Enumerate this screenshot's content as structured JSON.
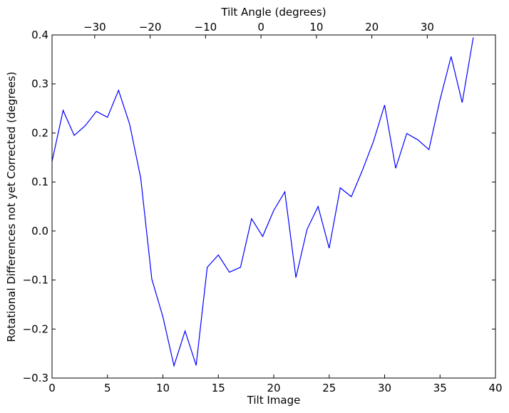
{
  "chart_data": {
    "type": "line",
    "xlabel": "Tilt Image",
    "ylabel": "Rotational Differences not yet Corrected (degrees)",
    "top_xlabel": "Tilt Angle (degrees)",
    "xlim": [
      0,
      40
    ],
    "ylim": [
      -0.3,
      0.4
    ],
    "xticks": [
      0,
      5,
      10,
      15,
      20,
      25,
      30,
      35,
      40
    ],
    "yticks": [
      -0.3,
      -0.2,
      -0.1,
      0.0,
      0.1,
      0.2,
      0.3,
      0.4
    ],
    "xtick_labels": [
      "0",
      "5",
      "10",
      "15",
      "20",
      "25",
      "30",
      "35",
      "40"
    ],
    "ytick_labels": [
      "−0.3",
      "−0.2",
      "−0.1",
      "0.0",
      "0.1",
      "0.2",
      "0.3",
      "0.4"
    ],
    "top_axis": {
      "ticks": [
        -30,
        -20,
        -10,
        0,
        10,
        20,
        30
      ],
      "labels": [
        "−30",
        "−20",
        "−10",
        "0",
        "10",
        "20",
        "30"
      ],
      "angle_at_x0": -37.7,
      "angle_per_image": 2.0
    },
    "grid": false,
    "series": [
      {
        "color": "#0000ff",
        "x": [
          0,
          1,
          2,
          3,
          4,
          5,
          6,
          7,
          8,
          9,
          10,
          11,
          12,
          13,
          14,
          15,
          16,
          17,
          18,
          19,
          20,
          21,
          22,
          23,
          24,
          25,
          26,
          27,
          28,
          29,
          30,
          31,
          32,
          33,
          34,
          35,
          36,
          37,
          38
        ],
        "y": [
          0.142,
          0.246,
          0.195,
          0.215,
          0.244,
          0.232,
          0.287,
          0.218,
          0.108,
          -0.098,
          -0.175,
          -0.275,
          -0.204,
          -0.274,
          -0.074,
          -0.049,
          -0.084,
          -0.074,
          0.025,
          -0.011,
          0.042,
          0.08,
          -0.095,
          0.003,
          0.05,
          -0.035,
          0.088,
          0.07,
          0.124,
          0.183,
          0.257,
          0.128,
          0.199,
          0.186,
          0.166,
          0.268,
          0.356,
          0.262,
          0.395
        ]
      }
    ]
  }
}
